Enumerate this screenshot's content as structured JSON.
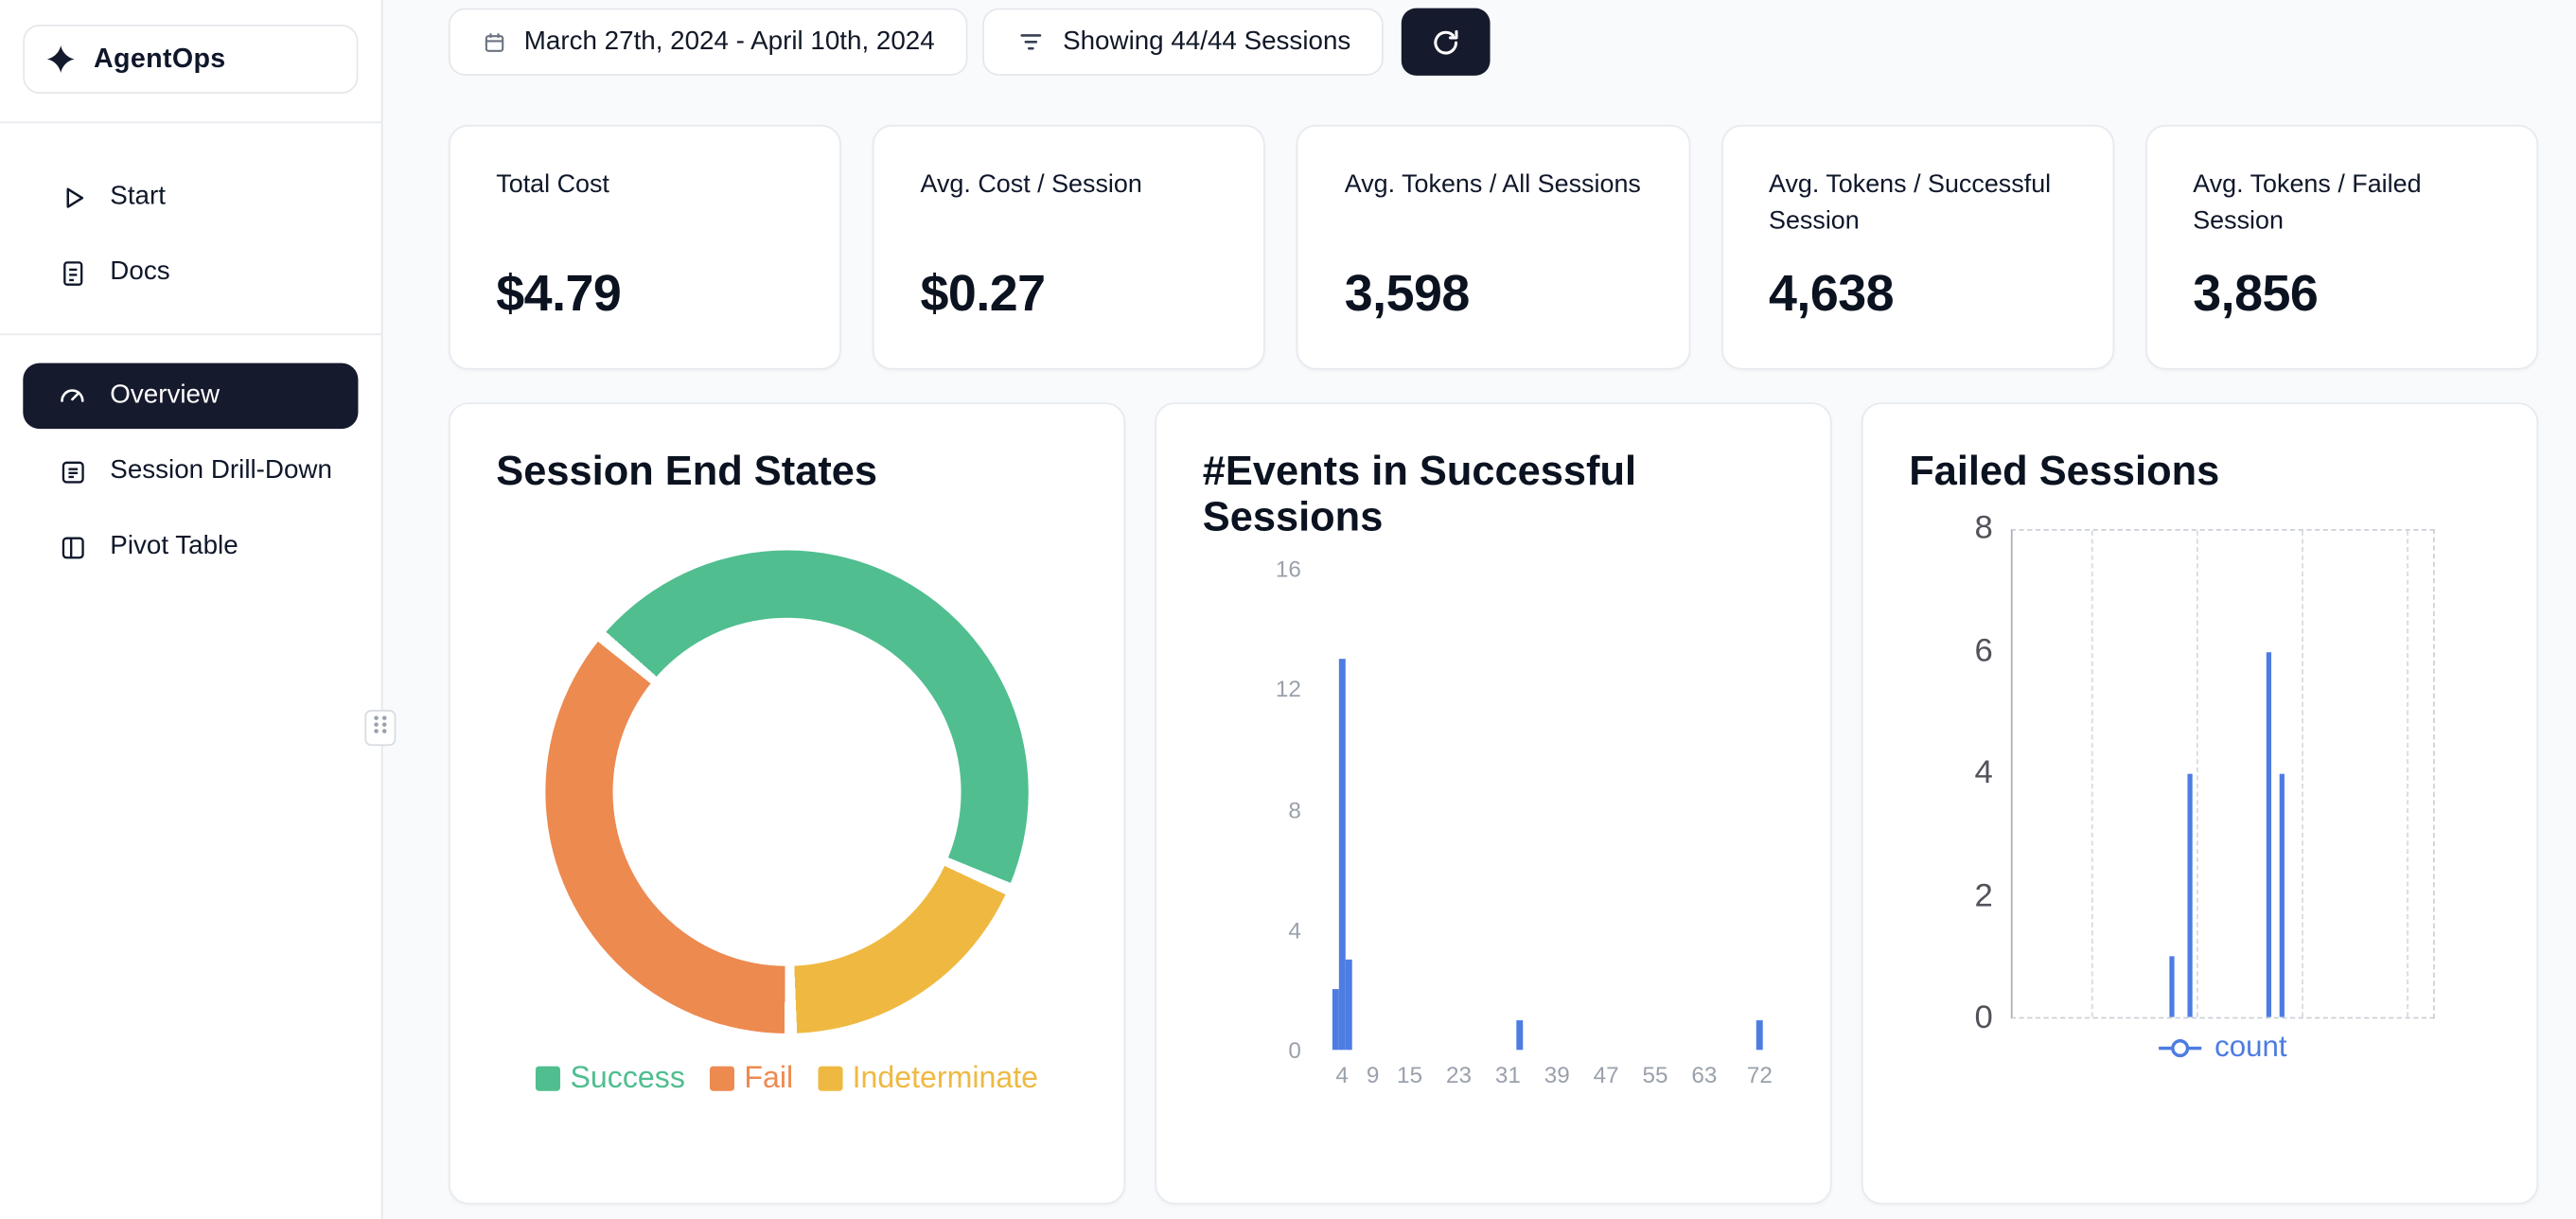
{
  "app": {
    "name": "AgentOps"
  },
  "sidebar": {
    "items": [
      {
        "label": "Start",
        "icon": "play-icon",
        "active": false
      },
      {
        "label": "Docs",
        "icon": "docs-icon",
        "active": false
      },
      {
        "label": "Overview",
        "icon": "gauge-icon",
        "active": true
      },
      {
        "label": "Session Drill-Down",
        "icon": "list-card-icon",
        "active": false
      },
      {
        "label": "Pivot Table",
        "icon": "pivot-table-icon",
        "active": false
      }
    ]
  },
  "toolbar": {
    "date_range": "March 27th, 2024 - April 10th, 2024",
    "sessions_filter": "Showing 44/44 Sessions",
    "icons": [
      "calendar-icon",
      "filter-icon",
      "refresh-icon"
    ]
  },
  "stats": [
    {
      "label": "Total Cost",
      "value": "$4.79"
    },
    {
      "label": "Avg. Cost / Session",
      "value": "$0.27"
    },
    {
      "label": "Avg. Tokens / All Sessions",
      "value": "3,598"
    },
    {
      "label": "Avg. Tokens / Successful Session",
      "value": "4,638"
    },
    {
      "label": "Avg. Tokens / Failed Session",
      "value": "3,856"
    }
  ],
  "colors": {
    "accent_dark": "#151a2d",
    "success_green": "#50be8f",
    "fail_orange": "#ed8a50",
    "indeterminate_yellow": "#efb941",
    "chart_blue": "#4d7ce2",
    "card_border": "#e7eaee",
    "page_bg": "#f8fafc"
  },
  "chart_data": [
    {
      "type": "pie",
      "donut": true,
      "title": "Session End States",
      "labels": [
        "Success",
        "Fail",
        "Indeterminate"
      ],
      "values": [
        20,
        16,
        8
      ],
      "total_sessions": 44,
      "colors": [
        "#50be8f",
        "#ed8a50",
        "#efb941"
      ],
      "start_angle": -50,
      "gap_deg": 3,
      "draw_order": [
        0,
        2,
        1
      ],
      "legend_position": "bottom"
    },
    {
      "type": "bar",
      "title": "#Events in Successful Sessions",
      "x": [
        3,
        4,
        5,
        33,
        72
      ],
      "values": [
        2,
        13,
        3,
        1,
        1
      ],
      "xticks": [
        4,
        9,
        15,
        23,
        31,
        39,
        47,
        55,
        63,
        72
      ],
      "yticks": [
        0,
        4,
        8,
        12,
        16
      ],
      "xlim": [
        0,
        76
      ],
      "ylim": [
        0,
        16
      ],
      "bar_color": "#4d7ce2",
      "xlabel": "",
      "ylabel": "",
      "grid": false
    },
    {
      "type": "line",
      "style": "impulse-spikes",
      "title": "Failed Sessions",
      "series": [
        {
          "name": "count",
          "color": "#4d7ce2",
          "points": [
            {
              "x": 38,
              "y": 1
            },
            {
              "x": 42,
              "y": 4
            },
            {
              "x": 61,
              "y": 6
            },
            {
              "x": 64,
              "y": 4
            }
          ]
        }
      ],
      "yticks": [
        0,
        2,
        4,
        6,
        8
      ],
      "ylim": [
        0,
        8
      ],
      "xlim": [
        0,
        100
      ],
      "gridlines_x_percent": [
        18.6,
        43.7,
        68.8,
        93.9
      ],
      "grid": "dashed",
      "legend_position": "bottom"
    }
  ]
}
